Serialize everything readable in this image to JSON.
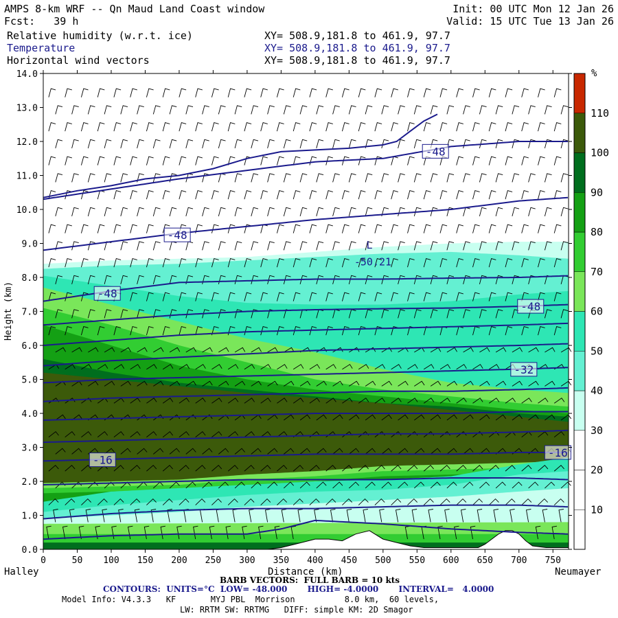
{
  "header": {
    "title": "AMPS 8-km WRF -- Qn Maud Land Coast window",
    "fcst": "Fcst:   39 h",
    "init": "Init: 00 UTC Mon 12 Jan 26",
    "valid": "Valid: 15 UTC Tue 13 Jan 26",
    "fields": [
      {
        "name": "Relative humidity (w.r.t. ice)",
        "xy": "XY= 508.9,181.8 to 461.9, 97.7",
        "color": "#000000"
      },
      {
        "name": "Temperature",
        "xy": "XY= 508.9,181.8 to 461.9, 97.7",
        "color": "#1a1a8c"
      },
      {
        "name": "Horizontal wind vectors",
        "xy": "XY= 508.9,181.8 to 461.9, 97.7",
        "color": "#000000"
      }
    ]
  },
  "footer": {
    "barb": "BARB VECTORS:  FULL BARB = 10 kts",
    "contours": "CONTOURS:  UNITS=°C  LOW= -48.000       HIGH= -4.0000       INTERVAL=   4.0000",
    "model1": "Model Info: V4.3.3   KF       MYJ PBL  Morrison          8.0 km,  60 levels,",
    "model2": "LW: RRTM SW: RRTMG   DIFF: simple KM: 2D Smagor"
  },
  "chart_data": {
    "type": "heatmap",
    "xlabel": "Distance (km)",
    "ylabel": "Height (km)",
    "xlim": [
      0,
      773
    ],
    "ylim": [
      0,
      14
    ],
    "xticks": [
      "0",
      "50",
      "100",
      "150",
      "200",
      "250",
      "300",
      "350",
      "400",
      "450",
      "500",
      "550",
      "600",
      "650",
      "700",
      "750"
    ],
    "yticks": [
      "0.0",
      "1.0",
      "2.0",
      "3.0",
      "4.0",
      "5.0",
      "6.0",
      "7.0",
      "8.0",
      "9.0",
      "10.0",
      "11.0",
      "12.0",
      "13.0",
      "14.0"
    ],
    "x_end_labels": {
      "left": "Halley",
      "right": "Neumayer"
    },
    "colorbar": {
      "unit": "%",
      "labels": [
        "10",
        "20",
        "30",
        "40",
        "50",
        "60",
        "70",
        "80",
        "90",
        "100",
        "110"
      ],
      "levels": [
        0,
        10,
        20,
        30,
        40,
        50,
        60,
        70,
        80,
        90,
        100,
        110,
        120
      ],
      "colors": [
        "#ffffff",
        "#ffffff",
        "#ffffff",
        "#c8fff0",
        "#64f0d2",
        "#2ee6b4",
        "#7ae65a",
        "#32cd32",
        "#14a014",
        "#006e1e",
        "#3c5a0a",
        "#c82800"
      ]
    },
    "rh_layers": [
      {
        "level": "30",
        "x": [
          0,
          100,
          200,
          300,
          400,
          500,
          600,
          700,
          773
        ],
        "top": [
          8.4,
          8.5,
          8.55,
          8.6,
          8.75,
          8.9,
          9.0,
          9.05,
          9.05
        ],
        "color": "#c8fff0"
      },
      {
        "level": "40",
        "x": [
          0,
          100,
          200,
          300,
          400,
          500,
          600,
          700,
          773
        ],
        "top": [
          8.25,
          8.35,
          8.4,
          8.5,
          8.6,
          8.7,
          8.75,
          8.65,
          8.55
        ],
        "color": "#64f0d2"
      },
      {
        "level": "50",
        "x": [
          0,
          100,
          200,
          300,
          400,
          500,
          600,
          700,
          773
        ],
        "top": [
          8.05,
          7.75,
          7.45,
          7.25,
          7.2,
          7.2,
          7.3,
          7.5,
          7.6
        ],
        "color": "#2ee6b4"
      },
      {
        "level": "60",
        "x": [
          0,
          100,
          200,
          300,
          400,
          500,
          600,
          700,
          773
        ],
        "top": [
          7.7,
          7.2,
          6.7,
          6.2,
          5.8,
          5.3,
          4.9,
          4.7,
          4.6
        ],
        "color": "#7ae65a"
      },
      {
        "level": "70",
        "x": [
          0,
          100,
          200,
          300,
          400,
          500,
          600,
          700,
          773
        ],
        "top": [
          7.1,
          6.6,
          6.0,
          5.5,
          5.0,
          4.7,
          4.5,
          4.3,
          4.2
        ],
        "color": "#32cd32"
      },
      {
        "level": "80",
        "x": [
          0,
          100,
          200,
          300,
          400,
          500,
          600,
          700,
          773
        ],
        "top": [
          6.6,
          6.0,
          5.4,
          5.0,
          4.7,
          4.5,
          4.3,
          4.1,
          4.0
        ],
        "color": "#14a014"
      },
      {
        "level": "90",
        "x": [
          0,
          100,
          200,
          300,
          400,
          500,
          600,
          700,
          773
        ],
        "top": [
          5.6,
          5.2,
          4.9,
          4.7,
          4.5,
          4.3,
          4.2,
          4.0,
          3.9
        ],
        "color": "#006e1e"
      },
      {
        "level": "100",
        "x": [
          0,
          100,
          200,
          300,
          400,
          500,
          600,
          700,
          773
        ],
        "top": [
          5.2,
          5.0,
          4.8,
          4.6,
          4.45,
          4.3,
          4.1,
          3.9,
          3.75
        ],
        "color": "#3c5a0a"
      }
    ],
    "dry_lower": [
      {
        "level": "50",
        "x": [
          0,
          100,
          200,
          300,
          400,
          500,
          600,
          700,
          773
        ],
        "top": [
          1.4,
          1.7,
          1.8,
          1.9,
          2.0,
          2.05,
          2.15,
          2.5,
          2.7
        ],
        "color": "#2ee6b4"
      },
      {
        "level": "40",
        "x": [
          0,
          100,
          200,
          300,
          400,
          500,
          600,
          700,
          773
        ],
        "top": [
          1.1,
          1.3,
          1.45,
          1.6,
          1.7,
          1.75,
          1.9,
          2.2,
          2.3
        ],
        "color": "#64f0d2"
      },
      {
        "level": "30",
        "x": [
          0,
          100,
          200,
          300,
          400,
          500,
          600,
          700,
          773
        ],
        "top": [
          0.9,
          1.0,
          1.1,
          1.25,
          1.35,
          1.45,
          1.55,
          1.7,
          1.8
        ],
        "color": "#c8fff0"
      }
    ],
    "moist_bottom": {
      "x": [
        0,
        100,
        200,
        300,
        400,
        500,
        600,
        700,
        773
      ],
      "top": [
        1.5,
        1.55,
        1.6,
        1.75,
        1.85,
        2.0,
        2.05,
        2.1,
        2.15
      ],
      "color": "#3c5a0a"
    },
    "terrain": {
      "x": [
        0,
        330,
        350,
        370,
        390,
        400,
        420,
        440,
        460,
        480,
        500,
        520,
        540,
        560,
        580,
        600,
        620,
        640,
        650,
        660,
        670,
        680,
        690,
        700,
        710,
        720,
        740,
        760,
        773
      ],
      "h": [
        0,
        0,
        0.05,
        0.15,
        0.25,
        0.3,
        0.3,
        0.25,
        0.45,
        0.55,
        0.3,
        0.2,
        0.1,
        0.05,
        0.05,
        0.05,
        0.05,
        0.05,
        0.15,
        0.3,
        0.45,
        0.55,
        0.55,
        0.45,
        0.25,
        0.1,
        0.05,
        0.05,
        0.05
      ]
    },
    "temperature_contours": [
      {
        "label": "-48",
        "x": [
          0,
          100,
          200,
          300,
          400,
          500,
          600,
          700,
          773
        ],
        "y": [
          10.3,
          10.6,
          10.9,
          11.15,
          11.4,
          11.5,
          11.85,
          12.0,
          12.0
        ]
      },
      {
        "label": "-48",
        "x": [
          0,
          100,
          200,
          300,
          400,
          500,
          600,
          700,
          773
        ],
        "y": [
          8.8,
          9.05,
          9.3,
          9.5,
          9.7,
          9.85,
          10.0,
          10.25,
          10.35
        ]
      },
      {
        "label": "",
        "x": [
          0,
          100,
          200,
          300,
          400,
          500,
          600,
          700,
          773
        ],
        "y": [
          7.3,
          7.6,
          7.85,
          7.9,
          7.95,
          7.95,
          7.98,
          8.0,
          8.05
        ]
      },
      {
        "label": "",
        "x": [
          0,
          100,
          200,
          300,
          400,
          500,
          600,
          700,
          773
        ],
        "y": [
          6.6,
          6.75,
          6.9,
          7.0,
          7.05,
          7.08,
          7.1,
          7.15,
          7.2
        ]
      },
      {
        "label": "",
        "x": [
          0,
          100,
          200,
          300,
          400,
          500,
          600,
          700,
          773
        ],
        "y": [
          6.0,
          6.15,
          6.3,
          6.4,
          6.45,
          6.5,
          6.55,
          6.6,
          6.65
        ]
      },
      {
        "label": "",
        "x": [
          0,
          100,
          200,
          300,
          400,
          500,
          600,
          700,
          773
        ],
        "y": [
          5.4,
          5.55,
          5.65,
          5.75,
          5.85,
          5.9,
          5.95,
          6.0,
          6.05
        ]
      },
      {
        "label": "-32",
        "x": [
          0,
          100,
          200,
          300,
          400,
          500,
          600,
          700,
          773
        ],
        "y": [
          4.9,
          5.0,
          5.05,
          5.1,
          5.15,
          5.2,
          5.25,
          5.3,
          5.35
        ]
      },
      {
        "label": "",
        "x": [
          0,
          100,
          200,
          300,
          400,
          500,
          600,
          700,
          773
        ],
        "y": [
          4.35,
          4.45,
          4.5,
          4.55,
          4.6,
          4.65,
          4.65,
          4.7,
          4.75
        ]
      },
      {
        "label": "",
        "x": [
          0,
          100,
          200,
          300,
          400,
          500,
          600,
          700,
          773
        ],
        "y": [
          3.8,
          3.85,
          3.9,
          3.95,
          4.0,
          4.0,
          4.0,
          4.05,
          4.05
        ]
      },
      {
        "label": "",
        "x": [
          0,
          100,
          200,
          300,
          400,
          500,
          600,
          700,
          773
        ],
        "y": [
          3.15,
          3.2,
          3.25,
          3.3,
          3.35,
          3.4,
          3.4,
          3.45,
          3.5
        ]
      },
      {
        "label": "-16",
        "x": [
          0,
          100,
          200,
          300,
          400,
          500,
          600,
          700,
          773
        ],
        "y": [
          2.6,
          2.65,
          2.7,
          2.75,
          2.8,
          2.8,
          2.8,
          2.85,
          2.85
        ]
      },
      {
        "label": "",
        "x": [
          0,
          100,
          200,
          300,
          400,
          500,
          600,
          700,
          773
        ],
        "y": [
          1.9,
          1.95,
          2.0,
          2.05,
          2.05,
          2.05,
          2.1,
          2.1,
          2.05
        ]
      },
      {
        "label": "",
        "x": [
          0,
          100,
          200,
          300,
          400,
          500,
          600,
          700,
          773
        ],
        "y": [
          0.9,
          1.05,
          1.15,
          1.2,
          1.2,
          1.25,
          1.3,
          1.3,
          1.25
        ]
      },
      {
        "label": "",
        "x": [
          0,
          100,
          200,
          300,
          350,
          400,
          500,
          600,
          700,
          773
        ],
        "y": [
          0.3,
          0.4,
          0.45,
          0.45,
          0.6,
          0.85,
          0.75,
          0.6,
          0.5,
          0.45
        ]
      }
    ],
    "tropopause_fold": {
      "x": [
        580,
        560,
        540,
        520,
        500,
        450,
        400,
        350,
        300,
        250,
        200,
        150,
        100,
        50,
        0
      ],
      "y": [
        12.8,
        12.6,
        12.3,
        12.0,
        11.9,
        11.8,
        11.75,
        11.7,
        11.5,
        11.2,
        11.0,
        10.9,
        10.7,
        10.55,
        10.35
      ]
    },
    "annotations": [
      {
        "text": "L",
        "x": 480,
        "y": 8.85
      },
      {
        "text": "-50.21",
        "x": 485,
        "y": 8.35
      }
    ]
  }
}
